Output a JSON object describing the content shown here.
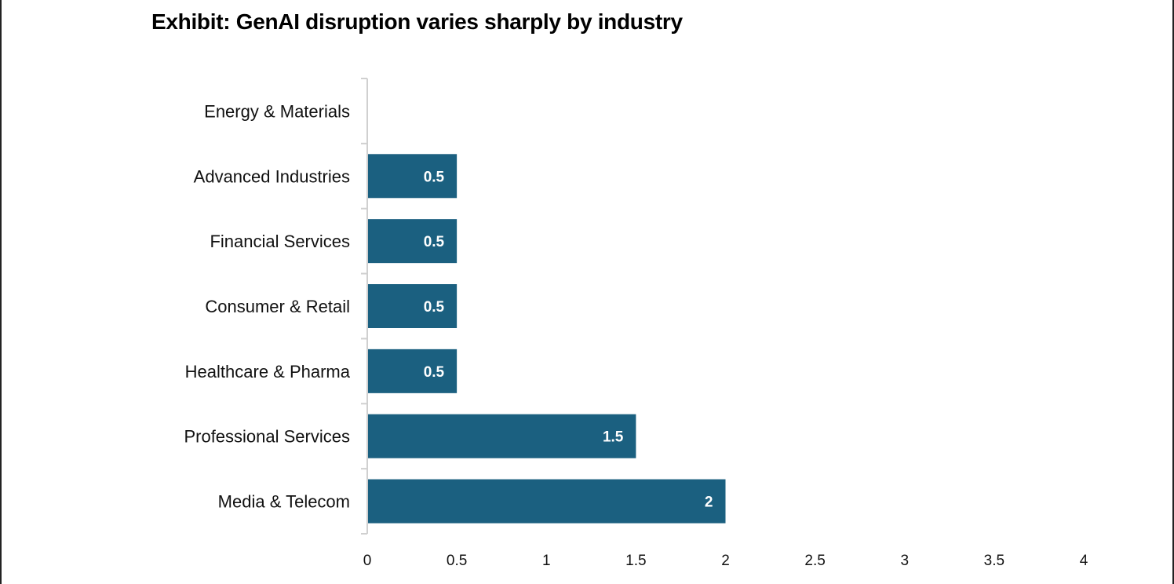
{
  "chart_data": {
    "type": "bar",
    "orientation": "horizontal",
    "title": "Exhibit: GenAI disruption varies sharply by industry",
    "categories": [
      "Energy & Materials",
      "Advanced Industries",
      "Financial Services",
      "Consumer & Retail",
      "Healthcare & Pharma",
      "Professional Services",
      "Media & Telecom"
    ],
    "values": [
      0,
      0.5,
      0.5,
      0.5,
      0.5,
      1.5,
      2
    ],
    "data_labels": [
      "",
      "0.5",
      "0.5",
      "0.5",
      "0.5",
      "1.5",
      "2"
    ],
    "xlim": [
      0,
      4
    ],
    "x_ticks": [
      0,
      0.5,
      1,
      1.5,
      2,
      2.5,
      3,
      3.5,
      4
    ],
    "x_tick_labels": [
      "0",
      "0.5",
      "1",
      "1.5",
      "2",
      "2.5",
      "3",
      "3.5",
      "4"
    ],
    "xlabel": "",
    "ylabel": "",
    "grid": false,
    "legend": "none",
    "colors": {
      "bar": "#1b6080",
      "axis": "#d0d0d0",
      "text": "#111111",
      "bar_label": "#ffffff"
    }
  }
}
